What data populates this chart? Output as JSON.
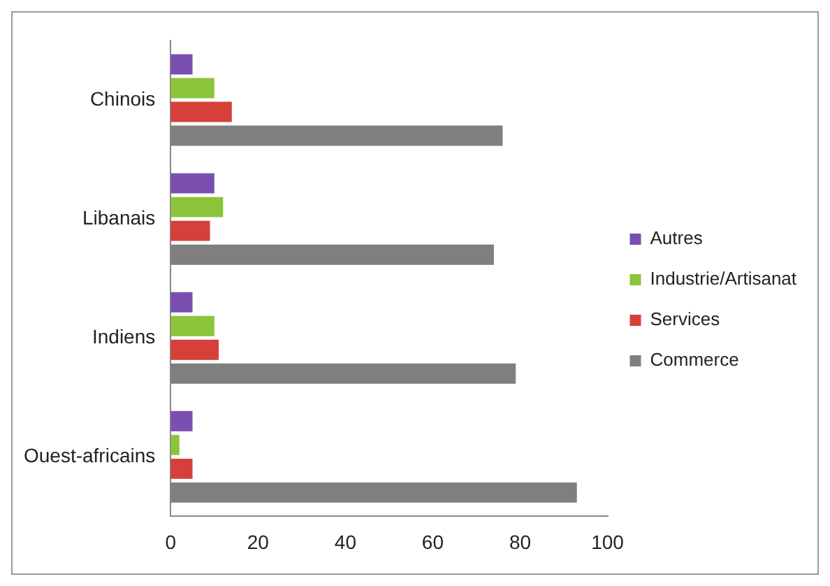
{
  "chart_data": {
    "type": "bar",
    "orientation": "horizontal",
    "categories": [
      "Chinois",
      "Libanais",
      "Indiens",
      "Ouest-africains"
    ],
    "series": [
      {
        "name": "Autres",
        "color": "#7b4fb0",
        "values": [
          5,
          10,
          5,
          5
        ]
      },
      {
        "name": "Industrie/Artisanat",
        "color": "#8cc43c",
        "values": [
          10,
          12,
          10,
          2
        ]
      },
      {
        "name": "Services",
        "color": "#d6403a",
        "values": [
          14,
          9,
          11,
          5
        ]
      },
      {
        "name": "Commerce",
        "color": "#7f7f7f",
        "values": [
          76,
          74,
          79,
          93
        ]
      }
    ],
    "xlim": [
      0,
      100
    ],
    "xticks": [
      0,
      20,
      40,
      60,
      80,
      100
    ],
    "grid": false,
    "legend": "right"
  }
}
